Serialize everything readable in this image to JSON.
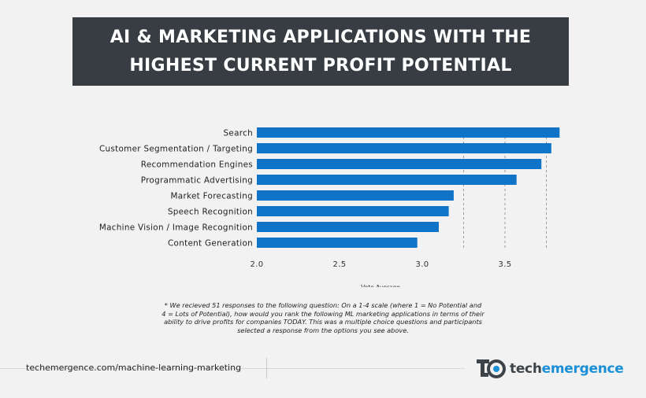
{
  "header": {
    "title": "AI & MARKETING APPLICATIONS WITH THE HIGHEST CURRENT PROFIT POTENTIAL"
  },
  "chart_data": {
    "type": "bar",
    "orientation": "horizontal",
    "categories": [
      "Search",
      "Customer Segmentation / Targeting",
      "Recommendation Engines",
      "Programmatic Advertising",
      "Market Forecasting",
      "Speech Recognition",
      "Machine Vision / Image Recognition",
      "Content Generation"
    ],
    "values": [
      3.83,
      3.78,
      3.72,
      3.57,
      3.19,
      3.16,
      3.1,
      2.97
    ],
    "xlabel": "Vote Average",
    "ylabel": "",
    "xlim": [
      2.0,
      3.8
    ],
    "xticks": [
      "2.0",
      "2.5",
      "3.0",
      "3.5"
    ],
    "bar_color": "#0f74c8",
    "grid": "dashed vertical lines"
  },
  "footnote": {
    "text": "* We recieved 51 responses to the following question: On a 1-4 scale (where 1 = No Potential and 4 = Lots of Potential), how would you rank the following ML marketing applications in terms of their ability to drive profits for companies TODAY. This was a multiple choice questions and participants selected a response from the options you see above."
  },
  "footer": {
    "url": "techemergence.com/machine-learning-marketing",
    "brand_tech": "tech",
    "brand_emergence": "emergence",
    "logo_icon": "techemergence-logo-icon",
    "brand_colors": {
      "dark": "#3d4449",
      "blue": "#1b8fd6"
    }
  }
}
